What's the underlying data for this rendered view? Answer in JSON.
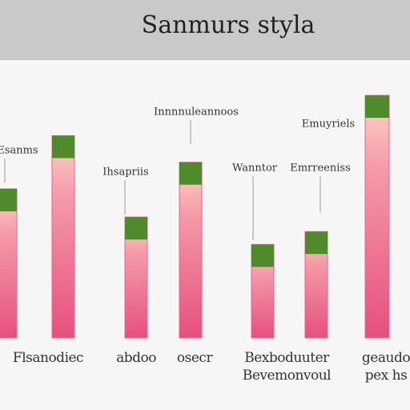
{
  "chart_data": {
    "type": "bar",
    "title": "Sanmurs styla",
    "categories": [
      "Flsanodiec",
      null,
      "abdoo",
      "osecr",
      "Bexboduuter\nBevemonvoul",
      null,
      "geaudo\npex hs"
    ],
    "values": [
      185,
      251,
      150,
      218,
      116,
      132,
      301
    ],
    "ylim": [
      0,
      320
    ],
    "color": "#e9628c",
    "cap_color": "#4f8a2b",
    "annotations": [
      "Esanms",
      "Innnnuleannoos",
      "Ihsapriis",
      "Wanntor",
      "Emrreeniss",
      "Emuyriels"
    ]
  }
}
